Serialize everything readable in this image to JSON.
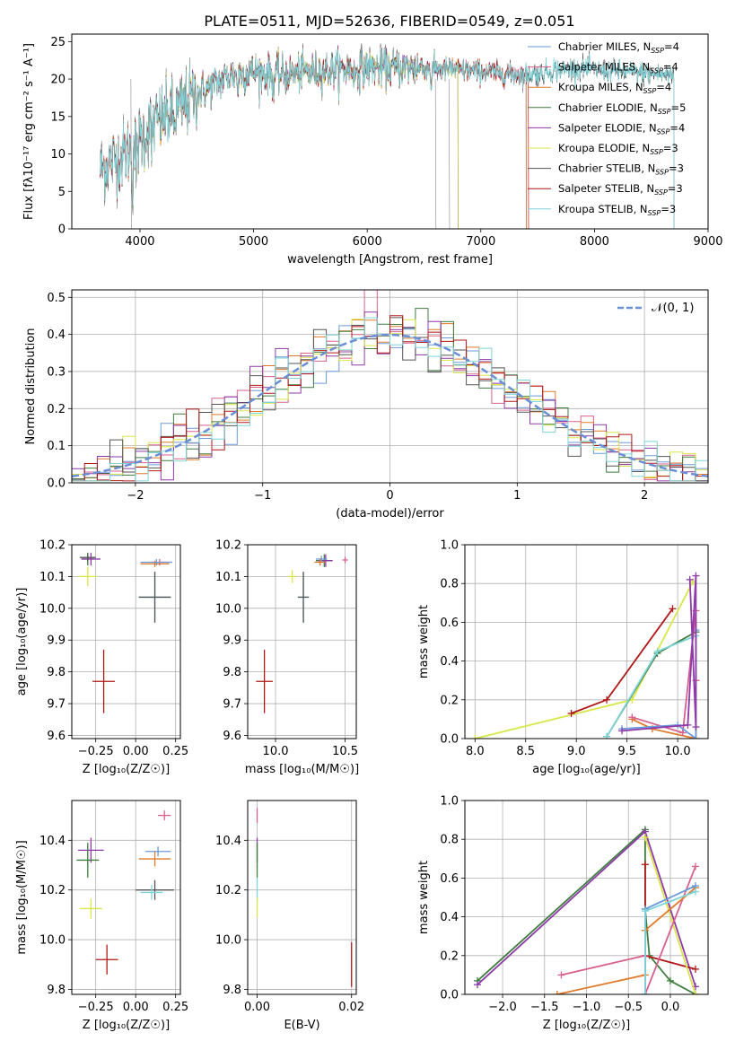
{
  "figure_title": "PLATE=0511, MJD=52636, FIBERID=0549, z=0.051",
  "chart_data": [
    {
      "id": "spectrum",
      "type": "line",
      "xlabel": "wavelength [Angstrom, rest frame]",
      "ylabel": "Flux [fλ10⁻¹⁷ erg cm⁻² s⁻¹ A⁻¹]",
      "xlim": [
        3400,
        9000
      ],
      "ylim": [
        0,
        26
      ],
      "xticks": [
        4000,
        5000,
        6000,
        7000,
        8000,
        9000
      ],
      "yticks": [
        0,
        5,
        10,
        15,
        20,
        25
      ],
      "grid": false,
      "legend_position": "right",
      "continuum": {
        "x": [
          3650,
          3800,
          3950,
          4100,
          4300,
          4500,
          4800,
          5000,
          5200,
          5500,
          6000,
          6500,
          7000,
          7400,
          7800,
          8200,
          8700
        ],
        "y": [
          8,
          9.5,
          11,
          14,
          15.5,
          18,
          20.5,
          21,
          20.5,
          21,
          21.5,
          21.5,
          21,
          20.5,
          21.5,
          21,
          20.5
        ]
      },
      "series": [
        {
          "name": "Chabrier MILES, N",
          "suffix": "=4",
          "color": "#6a9ad8",
          "xmin": 3650,
          "xmax": 7400
        },
        {
          "name": "Salpeter MILES, N",
          "suffix": "=4",
          "color": "#d9608c",
          "xmin": 3650,
          "xmax": 7400
        },
        {
          "name": "Kroupa MILES, N",
          "suffix": "=4",
          "color": "#e07a2a",
          "xmin": 3650,
          "xmax": 7400
        },
        {
          "name": "Chabrier ELODIE, N",
          "suffix": "=5",
          "color": "#3f7e3f",
          "xmin": 3900,
          "xmax": 6800
        },
        {
          "name": "Salpeter ELODIE, N",
          "suffix": "=4",
          "color": "#8e3aa8",
          "xmin": 3900,
          "xmax": 6800
        },
        {
          "name": "Kroupa ELODIE, N",
          "suffix": "=3",
          "color": "#d9e64a",
          "xmin": 3900,
          "xmax": 6800
        },
        {
          "name": "Chabrier STELIB, N",
          "suffix": "=3",
          "color": "#555555",
          "xmin": 3650,
          "xmax": 8700
        },
        {
          "name": "Salpeter STELIB, N",
          "suffix": "=3",
          "color": "#b01818",
          "xmin": 3650,
          "xmax": 7420
        },
        {
          "name": "Kroupa STELIB, N",
          "suffix": "=3",
          "color": "#7fd4d9",
          "xmin": 3650,
          "xmax": 8700
        }
      ],
      "legend_sub": "SSP"
    },
    {
      "id": "residuals",
      "type": "histogram",
      "xlabel": "(data-model)/error",
      "ylabel": "Normed distribution",
      "xlim": [
        -2.5,
        2.5
      ],
      "ylim": [
        0,
        0.52
      ],
      "xticks": [
        -2,
        -1,
        0,
        1,
        2
      ],
      "yticks": [
        0.0,
        0.1,
        0.2,
        0.3,
        0.4,
        0.5
      ],
      "grid": true,
      "legend": [
        {
          "label": "𝒩(0, 1)",
          "color": "#6a8fd6",
          "style": "dashed"
        }
      ],
      "legend_position": "top-right"
    },
    {
      "id": "age_vs_Z",
      "type": "scatter",
      "xlabel": "Z [log₁₀(Z/Z☉)]",
      "ylabel": "age  [log₁₀(age/yr)]",
      "xlim": [
        -0.4,
        0.28
      ],
      "ylim": [
        9.59,
        10.2
      ],
      "xticks": [
        -0.25,
        0.0,
        0.25
      ],
      "yticks": [
        9.6,
        9.7,
        9.8,
        9.9,
        10.0,
        10.1,
        10.2
      ],
      "grid": true,
      "points": [
        {
          "x": 0.15,
          "y": 10.145,
          "xerr": 0.07,
          "yerr": 0.01,
          "color": "#d9608c"
        },
        {
          "x": 0.12,
          "y": 10.14,
          "xerr": 0.09,
          "yerr": 0.01,
          "color": "#e07a2a"
        },
        {
          "x": 0.13,
          "y": 10.145,
          "xerr": 0.1,
          "yerr": 0.01,
          "color": "#6a9ad8"
        },
        {
          "x": -0.3,
          "y": 10.155,
          "xerr": 0.04,
          "yerr": 0.02,
          "color": "#3f7e3f"
        },
        {
          "x": -0.28,
          "y": 10.155,
          "xerr": 0.06,
          "yerr": 0.02,
          "color": "#8e3aa8"
        },
        {
          "x": -0.3,
          "y": 10.1,
          "xerr": 0.06,
          "yerr": 0.03,
          "color": "#d9e64a"
        },
        {
          "x": -0.3,
          "y": 10.16,
          "xerr": 0.05,
          "yerr": 0.01,
          "color": "#555555"
        },
        {
          "x": -0.2,
          "y": 9.77,
          "xerr": 0.07,
          "yerr": 0.1,
          "color": "#b01818"
        },
        {
          "x": 0.12,
          "y": 10.035,
          "xerr": 0.1,
          "yerr": 0.08,
          "color": "#7fd4d9"
        },
        {
          "x": 0.12,
          "y": 10.035,
          "xerr": 0.1,
          "yerr": 0.08,
          "color": "#555555"
        }
      ]
    },
    {
      "id": "age_vs_mass",
      "type": "scatter",
      "xlabel": "mass [log₁₀(M/M☉)]",
      "ylabel": "",
      "xlim": [
        9.8,
        10.58
      ],
      "ylim": [
        9.59,
        10.2
      ],
      "xticks": [
        10.0,
        10.5
      ],
      "yticks": [
        9.6,
        9.7,
        9.8,
        9.9,
        10.0,
        10.1,
        10.2
      ],
      "grid": true,
      "points": [
        {
          "x": 10.5,
          "y": 10.152,
          "xerr": 0.02,
          "yerr": 0.01,
          "color": "#d9608c"
        },
        {
          "x": 10.35,
          "y": 10.15,
          "xerr": 0.06,
          "yerr": 0.02,
          "color": "#3f7e3f"
        },
        {
          "x": 10.36,
          "y": 10.15,
          "xerr": 0.05,
          "yerr": 0.02,
          "color": "#8e3aa8"
        },
        {
          "x": 10.33,
          "y": 10.155,
          "xerr": 0.04,
          "yerr": 0.01,
          "color": "#6a9ad8"
        },
        {
          "x": 10.32,
          "y": 10.145,
          "xerr": 0.04,
          "yerr": 0.01,
          "color": "#e07a2a"
        },
        {
          "x": 10.12,
          "y": 10.1,
          "xerr": 0.03,
          "yerr": 0.02,
          "color": "#d9e64a"
        },
        {
          "x": 10.2,
          "y": 10.035,
          "xerr": 0.04,
          "yerr": 0.08,
          "color": "#7fd4d9"
        },
        {
          "x": 10.2,
          "y": 10.035,
          "xerr": 0.04,
          "yerr": 0.08,
          "color": "#555555"
        },
        {
          "x": 9.92,
          "y": 9.77,
          "xerr": 0.06,
          "yerr": 0.1,
          "color": "#b01818"
        }
      ]
    },
    {
      "id": "mw_vs_age",
      "type": "line",
      "xlabel": "age  [log₁₀(age/yr)]",
      "ylabel": "mass weight",
      "xlim": [
        7.9,
        10.3
      ],
      "ylim": [
        0,
        1
      ],
      "xticks": [
        8.0,
        8.5,
        9.0,
        9.5,
        10.0
      ],
      "yticks": [
        0.0,
        0.2,
        0.4,
        0.6,
        0.8,
        1.0
      ],
      "grid": true,
      "series": [
        {
          "color": "#d9e64a",
          "x": [
            8.0,
            9.55,
            10.15
          ],
          "y": [
            0.0,
            0.2,
            0.81
          ]
        },
        {
          "color": "#b01818",
          "x": [
            8.95,
            9.3,
            9.95
          ],
          "y": [
            0.13,
            0.2,
            0.67
          ]
        },
        {
          "color": "#3f7e3f",
          "x": [
            9.3,
            9.8,
            10.18
          ],
          "y": [
            0.01,
            0.44,
            0.55
          ]
        },
        {
          "color": "#7fd4d9",
          "x": [
            9.3,
            9.8,
            10.18
          ],
          "y": [
            0.01,
            0.45,
            0.53
          ]
        },
        {
          "color": "#e07a2a",
          "x": [
            9.55,
            9.75,
            10.18,
            10.18
          ],
          "y": [
            0.1,
            0.05,
            0.0,
            0.3
          ]
        },
        {
          "color": "#d9608c",
          "x": [
            9.55,
            10.05,
            10.18,
            10.18
          ],
          "y": [
            0.11,
            0.03,
            0.66,
            0.3
          ]
        },
        {
          "color": "#6a9ad8",
          "x": [
            9.45,
            10.0,
            10.18,
            10.18
          ],
          "y": [
            0.05,
            0.07,
            0.0,
            0.56
          ]
        },
        {
          "color": "#8e3aa8",
          "x": [
            9.45,
            10.1,
            10.18,
            10.18,
            10.12
          ],
          "y": [
            0.04,
            0.07,
            0.84,
            0.06,
            0.82
          ]
        }
      ]
    },
    {
      "id": "mass_vs_Z",
      "type": "scatter",
      "xlabel": "Z [log₁₀(Z/Z☉)]",
      "ylabel": "mass [log₁₀(M/M☉)]",
      "xlim": [
        -0.4,
        0.28
      ],
      "ylim": [
        9.78,
        10.56
      ],
      "xticks": [
        -0.25,
        0.0,
        0.25
      ],
      "yticks": [
        9.8,
        10.0,
        10.2,
        10.4
      ],
      "grid": true,
      "points": [
        {
          "x": 0.18,
          "y": 10.5,
          "xerr": 0.04,
          "yerr": 0.02,
          "color": "#d9608c"
        },
        {
          "x": 0.14,
          "y": 10.355,
          "xerr": 0.08,
          "yerr": 0.02,
          "color": "#6a9ad8"
        },
        {
          "x": 0.12,
          "y": 10.325,
          "xerr": 0.1,
          "yerr": 0.03,
          "color": "#e07a2a"
        },
        {
          "x": -0.28,
          "y": 10.36,
          "xerr": 0.08,
          "yerr": 0.05,
          "color": "#8e3aa8"
        },
        {
          "x": -0.3,
          "y": 10.32,
          "xerr": 0.07,
          "yerr": 0.07,
          "color": "#3f7e3f"
        },
        {
          "x": -0.28,
          "y": 10.125,
          "xerr": 0.07,
          "yerr": 0.04,
          "color": "#d9e64a"
        },
        {
          "x": 0.12,
          "y": 10.2,
          "xerr": 0.12,
          "yerr": 0.04,
          "color": "#555555"
        },
        {
          "x": 0.1,
          "y": 10.19,
          "xerr": 0.07,
          "yerr": 0.03,
          "color": "#7fd4d9"
        },
        {
          "x": -0.18,
          "y": 9.92,
          "xerr": 0.07,
          "yerr": 0.06,
          "color": "#b01818"
        }
      ]
    },
    {
      "id": "mass_vs_ebv",
      "type": "scatter",
      "xlabel": "E(B-V)",
      "ylabel": "",
      "xlim": [
        -0.002,
        0.021
      ],
      "ylim": [
        9.78,
        10.56
      ],
      "xticks": [
        0.0,
        0.02
      ],
      "xticklabels": [
        "0.00",
        "0.02"
      ],
      "yticks": [
        9.8,
        10.0,
        10.2,
        10.4
      ],
      "grid": true,
      "points": [
        {
          "x": 0.0,
          "y": 10.5,
          "xerr": 0,
          "yerr": 0.03,
          "color": "#d9608c"
        },
        {
          "x": 0.0,
          "y": 10.36,
          "xerr": 0,
          "yerr": 0.05,
          "color": "#8e3aa8"
        },
        {
          "x": 0.0,
          "y": 10.32,
          "xerr": 0,
          "yerr": 0.07,
          "color": "#3f7e3f"
        },
        {
          "x": 0.0,
          "y": 10.2,
          "xerr": 0,
          "yerr": 0.05,
          "color": "#7fd4d9"
        },
        {
          "x": 0.0,
          "y": 10.13,
          "xerr": 0,
          "yerr": 0.04,
          "color": "#d9e64a"
        },
        {
          "x": 0.02,
          "y": 9.9,
          "xerr": 0,
          "yerr": 0.09,
          "color": "#b01818"
        }
      ]
    },
    {
      "id": "mw_vs_Z",
      "type": "line",
      "xlabel": "Z [log₁₀(Z/Z☉)]",
      "ylabel": "mass weight",
      "xlim": [
        -2.45,
        0.45
      ],
      "ylim": [
        0,
        1
      ],
      "xticks": [
        -2.0,
        -1.5,
        -1.0,
        -0.5,
        0.0
      ],
      "xticklabels": [
        "−2.0",
        "−1.5",
        "−1.0",
        "−0.5",
        "0.0"
      ],
      "yticks": [
        0.0,
        0.2,
        0.4,
        0.6,
        0.8,
        1.0
      ],
      "grid": true,
      "series": [
        {
          "color": "#3f7e3f",
          "x": [
            -2.3,
            -0.3,
            -0.3,
            -0.25,
            0.0,
            0.3
          ],
          "y": [
            0.07,
            0.85,
            0.44,
            0.2,
            0.07,
            0.0
          ]
        },
        {
          "color": "#8e3aa8",
          "x": [
            -2.3,
            -0.3,
            0.3
          ],
          "y": [
            0.05,
            0.84,
            0.04
          ]
        },
        {
          "color": "#b01818",
          "x": [
            -0.3,
            -0.3,
            0.3
          ],
          "y": [
            0.67,
            0.2,
            0.13
          ]
        },
        {
          "color": "#d9e64a",
          "x": [
            -0.3,
            0.3
          ],
          "y": [
            0.81,
            0.0
          ]
        },
        {
          "color": "#d9608c",
          "x": [
            -1.3,
            -0.3,
            -0.3,
            0.3
          ],
          "y": [
            0.1,
            0.2,
            0.0,
            0.66
          ]
        },
        {
          "color": "#e07a2a",
          "x": [
            -1.35,
            -0.3,
            -0.3,
            0.3
          ],
          "y": [
            0.0,
            0.1,
            0.33,
            0.55
          ]
        },
        {
          "color": "#6a9ad8",
          "x": [
            -0.3,
            -0.3,
            0.3
          ],
          "y": [
            0.0,
            0.44,
            0.56
          ]
        },
        {
          "color": "#7fd4d9",
          "x": [
            -0.3,
            -0.3,
            0.3
          ],
          "y": [
            0.0,
            0.43,
            0.53
          ]
        }
      ]
    }
  ]
}
